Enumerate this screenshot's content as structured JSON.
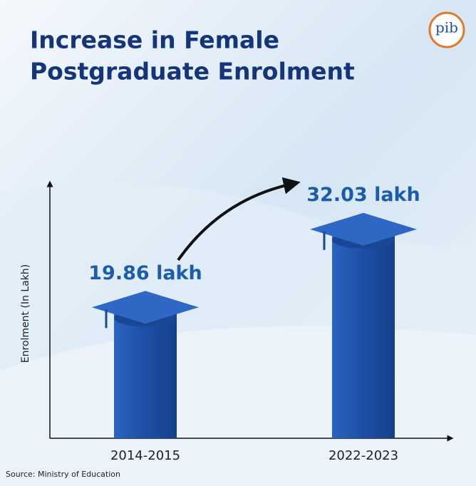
{
  "chart_data": {
    "type": "bar",
    "title": [
      "Increase in Female",
      "Postgraduate Enrolment"
    ],
    "logo": "pib",
    "y_label": "Enrolment (In Lakh)",
    "categories": [
      "2014-2015",
      "2022-2023"
    ],
    "values": [
      19.86,
      32.03
    ],
    "value_labels": [
      "19.86 lakh",
      "32.03 lakh"
    ],
    "color": "#1d4fa6",
    "ylim": [
      0,
      40
    ],
    "source": "Source: Ministry of Education"
  }
}
